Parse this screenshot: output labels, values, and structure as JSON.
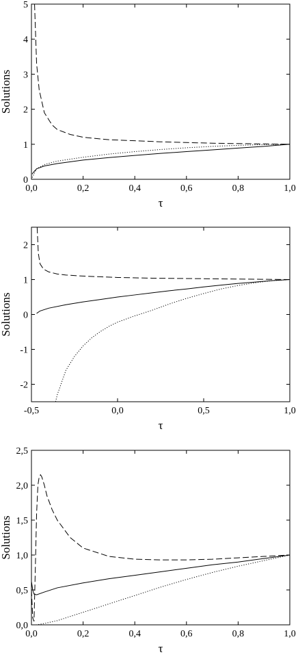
{
  "chart_data": [
    {
      "type": "line",
      "xlabel": "τ",
      "ylabel": "Solutions",
      "xlim": [
        0.0,
        1.0
      ],
      "ylim": [
        0,
        5
      ],
      "xticks": [
        0.0,
        0.2,
        0.4,
        0.6,
        0.8,
        1.0
      ],
      "xtick_labels": [
        "0,0",
        "0,2",
        "0,4",
        "0,6",
        "0,8",
        "1,0"
      ],
      "yticks": [
        0,
        1,
        2,
        3,
        4,
        5
      ],
      "ytick_labels": [
        "0",
        "1",
        "2",
        "3",
        "4",
        "5"
      ],
      "grid": false,
      "series": [
        {
          "style": "solid",
          "x": [
            0.003,
            0.01,
            0.02,
            0.05,
            0.1,
            0.2,
            0.3,
            0.4,
            0.5,
            0.6,
            0.7,
            0.8,
            0.9,
            1.0
          ],
          "y": [
            0.15,
            0.22,
            0.3,
            0.38,
            0.45,
            0.55,
            0.62,
            0.68,
            0.74,
            0.79,
            0.84,
            0.89,
            0.94,
            1.0
          ]
        },
        {
          "style": "dashed",
          "x": [
            0.012,
            0.02,
            0.03,
            0.05,
            0.08,
            0.1,
            0.15,
            0.2,
            0.3,
            0.4,
            0.5,
            0.6,
            0.7,
            0.8,
            0.9,
            1.0
          ],
          "y": [
            5.0,
            3.3,
            2.55,
            1.9,
            1.55,
            1.42,
            1.28,
            1.2,
            1.13,
            1.1,
            1.07,
            1.05,
            1.03,
            1.02,
            1.01,
            1.0
          ]
        },
        {
          "style": "dotted",
          "x": [
            0.003,
            0.02,
            0.05,
            0.1,
            0.2,
            0.3,
            0.4,
            0.5,
            0.6,
            0.7,
            0.8,
            0.9,
            1.0
          ],
          "y": [
            0.05,
            0.3,
            0.42,
            0.52,
            0.63,
            0.72,
            0.79,
            0.85,
            0.9,
            0.94,
            0.97,
            0.99,
            1.0
          ]
        }
      ]
    },
    {
      "type": "line",
      "xlabel": "τ",
      "ylabel": "Solutions",
      "xlim": [
        -0.5,
        1.0
      ],
      "ylim": [
        -2.5,
        2.5
      ],
      "xticks": [
        -0.5,
        0.0,
        0.5,
        1.0
      ],
      "xtick_labels": [
        "-0,5",
        "0,0",
        "0,5",
        "1,0"
      ],
      "yticks": [
        -2,
        -1,
        0,
        1,
        2
      ],
      "ytick_labels": [
        "-2",
        "-1",
        "0",
        "1",
        "2"
      ],
      "grid": false,
      "series": [
        {
          "style": "solid",
          "x": [
            -0.47,
            -0.45,
            -0.4,
            -0.3,
            -0.2,
            -0.1,
            0.0,
            0.1,
            0.2,
            0.3,
            0.4,
            0.5,
            0.6,
            0.7,
            0.8,
            0.9,
            1.0
          ],
          "y": [
            0.03,
            0.1,
            0.18,
            0.28,
            0.36,
            0.43,
            0.5,
            0.56,
            0.62,
            0.68,
            0.73,
            0.79,
            0.84,
            0.89,
            0.93,
            0.97,
            1.0
          ]
        },
        {
          "style": "dashed",
          "x": [
            -0.467,
            -0.46,
            -0.45,
            -0.43,
            -0.4,
            -0.35,
            -0.3,
            -0.2,
            -0.1,
            0.0,
            0.2,
            0.4,
            0.6,
            0.8,
            1.0
          ],
          "y": [
            2.5,
            1.75,
            1.45,
            1.3,
            1.22,
            1.16,
            1.13,
            1.1,
            1.08,
            1.06,
            1.04,
            1.03,
            1.02,
            1.01,
            1.0
          ]
        },
        {
          "style": "dotted",
          "x": [
            -0.36,
            -0.35,
            -0.3,
            -0.25,
            -0.2,
            -0.15,
            -0.1,
            -0.05,
            0.0,
            0.1,
            0.2,
            0.3,
            0.4,
            0.5,
            0.6,
            0.7,
            0.8,
            0.9,
            1.0
          ],
          "y": [
            -2.5,
            -2.3,
            -1.6,
            -1.2,
            -0.9,
            -0.67,
            -0.49,
            -0.34,
            -0.22,
            -0.04,
            0.12,
            0.3,
            0.46,
            0.6,
            0.73,
            0.83,
            0.91,
            0.97,
            1.0
          ]
        }
      ]
    },
    {
      "type": "line",
      "xlabel": "τ",
      "ylabel": "Solutions",
      "xlim": [
        0.0,
        1.0
      ],
      "ylim": [
        0.0,
        2.5
      ],
      "xticks": [
        0.0,
        0.2,
        0.4,
        0.6,
        0.8,
        1.0
      ],
      "xtick_labels": [
        "0,0",
        "0,2",
        "0,4",
        "0,6",
        "0,8",
        "1,0"
      ],
      "yticks": [
        0.0,
        0.5,
        1.0,
        1.5,
        2.0,
        2.5
      ],
      "ytick_labels": [
        "0,0",
        "0,5",
        "1,0",
        "1,5",
        "2,0",
        "2,5"
      ],
      "grid": false,
      "series": [
        {
          "style": "solid",
          "x": [
            0.0,
            0.005,
            0.01,
            0.02,
            0.05,
            0.1,
            0.2,
            0.3,
            0.4,
            0.5,
            0.6,
            0.7,
            0.8,
            0.9,
            1.0
          ],
          "y": [
            0.62,
            0.5,
            0.44,
            0.43,
            0.47,
            0.53,
            0.6,
            0.66,
            0.71,
            0.76,
            0.81,
            0.86,
            0.9,
            0.95,
            1.0
          ]
        },
        {
          "style": "dashed",
          "x": [
            0.0,
            0.005,
            0.01,
            0.015,
            0.02,
            0.025,
            0.03,
            0.035,
            0.04,
            0.05,
            0.06,
            0.08,
            0.1,
            0.15,
            0.2,
            0.3,
            0.4,
            0.5,
            0.6,
            0.7,
            0.8,
            0.9,
            1.0
          ],
          "y": [
            0.5,
            0.1,
            0.05,
            0.8,
            1.6,
            2.0,
            2.12,
            2.15,
            2.12,
            2.0,
            1.85,
            1.65,
            1.5,
            1.25,
            1.1,
            0.98,
            0.94,
            0.93,
            0.93,
            0.94,
            0.96,
            0.98,
            1.0
          ]
        },
        {
          "style": "dotted",
          "x": [
            0.0,
            0.02,
            0.05,
            0.1,
            0.15,
            0.2,
            0.3,
            0.4,
            0.5,
            0.6,
            0.7,
            0.8,
            0.9,
            1.0
          ],
          "y": [
            0.0,
            0.0,
            0.02,
            0.06,
            0.12,
            0.18,
            0.3,
            0.42,
            0.54,
            0.65,
            0.75,
            0.84,
            0.92,
            1.0
          ]
        }
      ]
    }
  ]
}
